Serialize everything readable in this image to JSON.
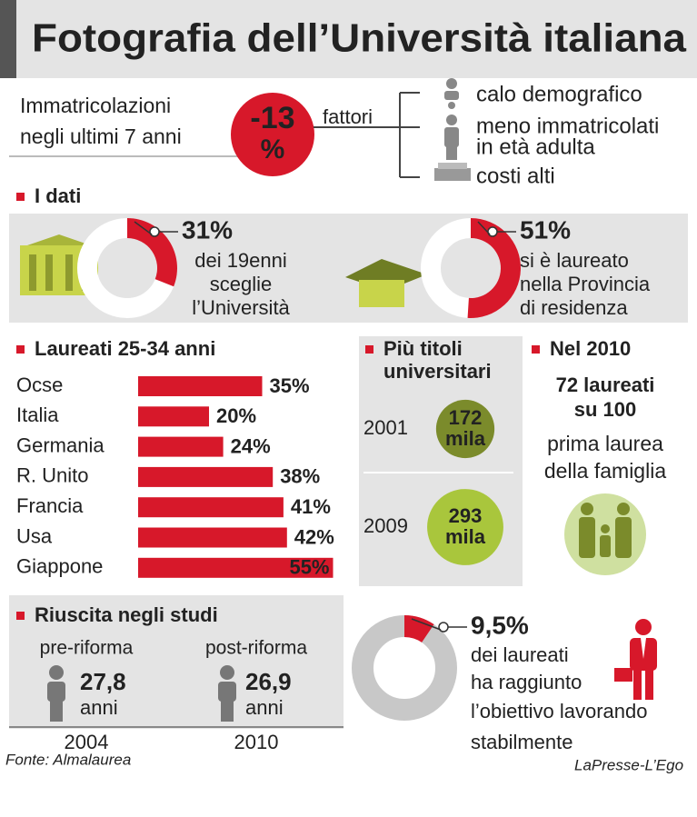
{
  "title": "Fotografia dell’Università italiana",
  "enrollment": {
    "label": [
      "Immatricolazioni",
      "negli ultimi 7 anni"
    ],
    "change": [
      "-13",
      "%"
    ],
    "factors_label": "fattori",
    "factors": [
      [
        "calo demografico"
      ],
      [
        "meno immatricolati",
        "in età adulta"
      ],
      [
        "costi alti"
      ]
    ]
  },
  "sections": {
    "data": "I dati",
    "year": "Nel 2010",
    "studies": "Riuscita negli studi"
  },
  "first_degree": {
    "headline": [
      "72 laureati",
      "su 100"
    ],
    "caption": [
      "prima laurea",
      "della famiglia"
    ]
  },
  "studies": [
    {
      "label": "pre-riforma",
      "age": "27,8",
      "unit": "anni",
      "year": "2004"
    },
    {
      "label": "post-riforma",
      "age": "26,9",
      "unit": "anni",
      "year": "2010"
    }
  ],
  "source": "Fonte: Almalaurea",
  "credit": "LaPresse-L’Ego",
  "chart_data": [
    {
      "type": "pie",
      "values": [
        31
      ],
      "value_labels": [
        "31%"
      ],
      "caption": [
        "dei 19enni",
        "sceglie",
        "l’Università"
      ],
      "color": "#d7182a"
    },
    {
      "type": "pie",
      "values": [
        51
      ],
      "value_labels": [
        "51%"
      ],
      "caption": [
        "si è laureato",
        "nella Provincia",
        "di residenza"
      ],
      "color": "#d7182a"
    },
    {
      "type": "bar",
      "orientation": "horizontal",
      "title": "Laureati 25-34 anni",
      "categories": [
        "Ocse",
        "Italia",
        "Germania",
        "R. Unito",
        "Francia",
        "Usa",
        "Giappone"
      ],
      "values": [
        35,
        20,
        24,
        38,
        41,
        42,
        55
      ],
      "value_labels": [
        "35%",
        "20%",
        "24%",
        "38%",
        "41%",
        "42%",
        "55%"
      ],
      "color": "#d7182a"
    },
    {
      "type": "bubble",
      "title": [
        "Più titoli",
        "universitari"
      ],
      "categories": [
        "2001",
        "2009"
      ],
      "values": [
        172,
        293
      ],
      "value_labels": [
        [
          "172",
          "mila"
        ],
        [
          "293",
          "mila"
        ]
      ],
      "colors": [
        "#7b8b2b",
        "#a9c63c"
      ]
    },
    {
      "type": "pie",
      "values": [
        9.5
      ],
      "value_labels": [
        "9,5%"
      ],
      "caption": [
        "dei laureati",
        "ha raggiunto",
        "l’obiettivo lavorando",
        "stabilmente"
      ],
      "color": "#d7182a"
    }
  ]
}
